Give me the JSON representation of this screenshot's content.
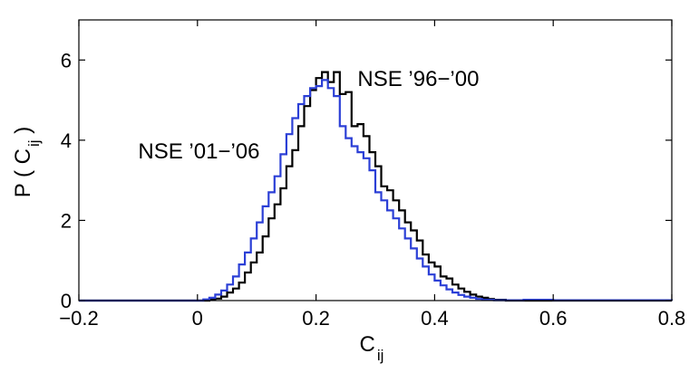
{
  "chart_data": {
    "type": "line",
    "xlabel": "C",
    "xlabel_subscript": "ij",
    "ylabel_prefix": "P ( C",
    "ylabel_subscript": "ij",
    "ylabel_suffix": " )",
    "xlim": [
      -0.2,
      0.8
    ],
    "ylim": [
      0,
      7
    ],
    "xticks": [
      -0.2,
      0,
      0.2,
      0.4,
      0.6,
      0.8
    ],
    "xtick_labels": [
      "−0.2",
      "0",
      "0.2",
      "0.4",
      "0.6",
      "0.8"
    ],
    "yticks": [
      0,
      2,
      4,
      6
    ],
    "ytick_labels": [
      "0",
      "2",
      "4",
      "6"
    ],
    "grid": false,
    "series": [
      {
        "color": "#000000",
        "x": [
          -0.2,
          0.02,
          0.03,
          0.04,
          0.05,
          0.06,
          0.07,
          0.08,
          0.09,
          0.1,
          0.11,
          0.12,
          0.13,
          0.14,
          0.15,
          0.16,
          0.17,
          0.18,
          0.19,
          0.2,
          0.21,
          0.22,
          0.23,
          0.24,
          0.25,
          0.26,
          0.27,
          0.28,
          0.29,
          0.3,
          0.31,
          0.32,
          0.33,
          0.34,
          0.35,
          0.36,
          0.37,
          0.38,
          0.39,
          0.4,
          0.41,
          0.42,
          0.43,
          0.44,
          0.45,
          0.46,
          0.47,
          0.48,
          0.49,
          0.5,
          0.52,
          0.8
        ],
        "y": [
          0,
          0.02,
          0.05,
          0.1,
          0.2,
          0.3,
          0.45,
          0.7,
          0.95,
          1.2,
          1.6,
          2.05,
          2.4,
          2.8,
          3.35,
          3.75,
          4.35,
          4.85,
          5.25,
          5.55,
          5.7,
          5.45,
          5.7,
          5.15,
          5.2,
          4.35,
          4.4,
          4.1,
          3.7,
          3.35,
          2.85,
          2.75,
          2.5,
          2.25,
          1.95,
          1.75,
          1.5,
          1.15,
          0.95,
          0.85,
          0.6,
          0.55,
          0.4,
          0.3,
          0.22,
          0.15,
          0.1,
          0.07,
          0.04,
          0.02,
          0,
          0
        ]
      },
      {
        "color": "#2b3fd6",
        "x": [
          -0.2,
          0.01,
          0.02,
          0.03,
          0.04,
          0.05,
          0.06,
          0.07,
          0.08,
          0.09,
          0.1,
          0.11,
          0.12,
          0.13,
          0.14,
          0.15,
          0.16,
          0.17,
          0.18,
          0.19,
          0.2,
          0.21,
          0.22,
          0.23,
          0.24,
          0.25,
          0.26,
          0.27,
          0.28,
          0.29,
          0.3,
          0.31,
          0.32,
          0.33,
          0.34,
          0.35,
          0.36,
          0.37,
          0.38,
          0.39,
          0.4,
          0.41,
          0.42,
          0.43,
          0.44,
          0.45,
          0.46,
          0.47,
          0.48,
          0.5,
          0.55,
          0.6,
          0.8
        ],
        "y": [
          0,
          0.03,
          0.07,
          0.15,
          0.25,
          0.4,
          0.6,
          0.9,
          1.2,
          1.55,
          1.95,
          2.35,
          2.7,
          3.1,
          3.65,
          4.15,
          4.55,
          4.9,
          5.1,
          5.3,
          5.35,
          5.5,
          5.3,
          5.1,
          4.35,
          4.05,
          3.85,
          3.7,
          3.55,
          3.25,
          2.7,
          2.5,
          2.25,
          2.05,
          1.8,
          1.55,
          1.3,
          1.05,
          0.85,
          0.65,
          0.5,
          0.38,
          0.28,
          0.2,
          0.14,
          0.1,
          0.07,
          0.04,
          0.02,
          0.01,
          0.02,
          0.01,
          0
        ]
      }
    ],
    "annotations": [
      {
        "text": "NSE ’96−’00",
        "x": 0.27,
        "y": 5.35
      },
      {
        "text": "NSE ’01−’06",
        "x": -0.1,
        "y": 3.55
      }
    ]
  }
}
